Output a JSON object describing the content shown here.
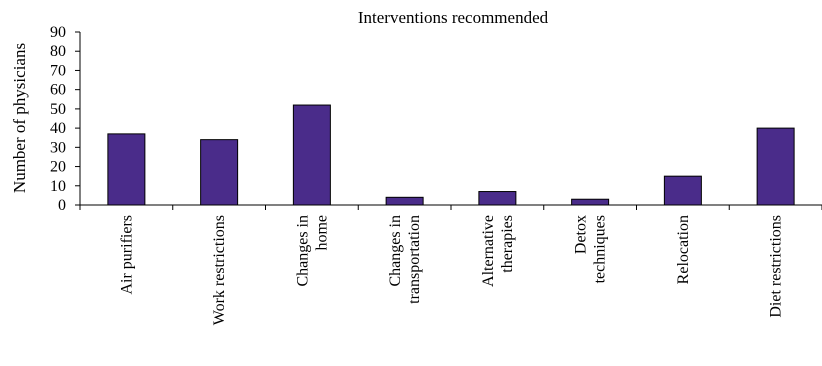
{
  "chart_data": {
    "type": "bar",
    "title": "Interventions recommended",
    "xlabel": "",
    "ylabel": "Number of physicians",
    "categories": [
      [
        "Air purifiers"
      ],
      [
        "Work restrictions"
      ],
      [
        "Changes in",
        "home"
      ],
      [
        "Changes in",
        "transportation"
      ],
      [
        "Alternative",
        "therapies"
      ],
      [
        "Detox",
        "techniques"
      ],
      [
        "Relocation"
      ],
      [
        "Diet restrictions"
      ]
    ],
    "values": [
      37,
      34,
      52,
      4,
      7,
      3,
      15,
      40
    ],
    "ylim": [
      0,
      90
    ],
    "yticks": [
      "0",
      "10",
      "20",
      "30",
      "40",
      "50",
      "60",
      "70",
      "80",
      "90"
    ],
    "grid": false,
    "legend": "none"
  },
  "colors": {
    "bar_fill": "#4a2c8a",
    "bar_stroke": "#000000",
    "axis": "#000000"
  }
}
